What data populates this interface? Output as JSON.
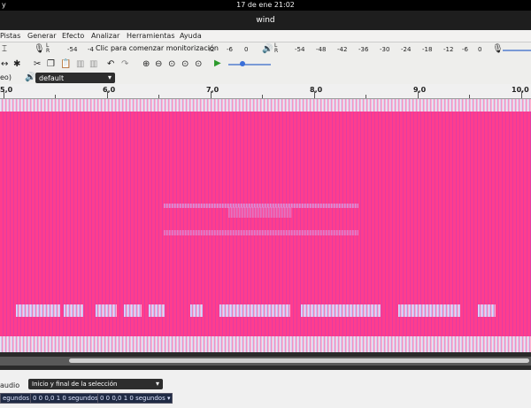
{
  "system_bar": {
    "clock": "17 de ene  21:02",
    "left_glyph": "y"
  },
  "window": {
    "title": "wind"
  },
  "menu": {
    "items": [
      "Pistas",
      "Generar",
      "Efecto",
      "Analizar",
      "Herramientas",
      "Ayuda"
    ]
  },
  "meters": {
    "record_scale_left": [
      "-54",
      "-4"
    ],
    "monitor_prompt": "Clic para comenzar monitorización",
    "record_scale_right": [
      "i2",
      "-6",
      "0"
    ],
    "playback_scale": [
      "-54",
      "-48",
      "-42",
      "-36",
      "-30",
      "-24",
      "-18",
      "-12",
      "-6",
      "0"
    ],
    "lr_label_l": "L",
    "lr_label_r": "R"
  },
  "device": {
    "host_suffix": "eo)",
    "output_device": "default"
  },
  "ruler": {
    "labels": [
      "5,0",
      "6,0",
      "7,0",
      "8,0",
      "9,0",
      "10,0"
    ]
  },
  "selection": {
    "rate_label": "audio",
    "mode": "Inicio y final de la selección",
    "left_unit": "egundos",
    "start_time": "0 0 0,0 1 0 segundos",
    "end_time": "0 0 0,0 1 0 segundos"
  },
  "colors": {
    "spectrogram_main": "#ff3d8e",
    "spectrogram_highlight": "#b7b4f0"
  }
}
